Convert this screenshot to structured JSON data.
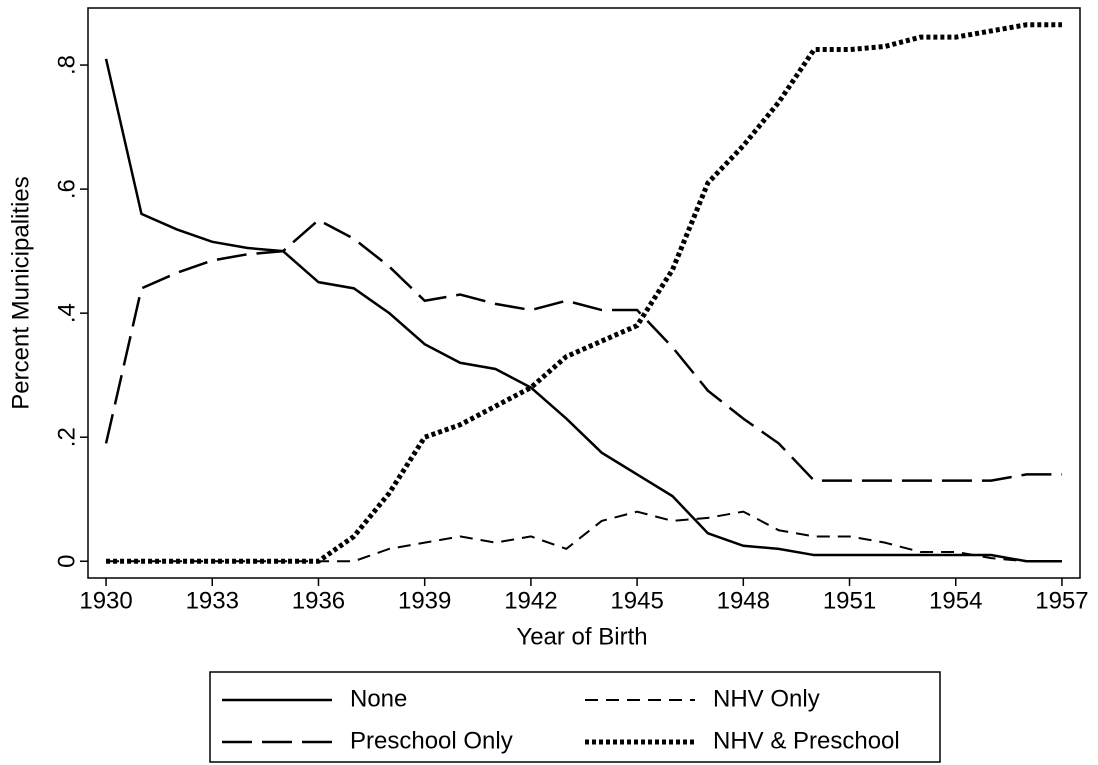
{
  "chart_data": {
    "type": "line",
    "x": [
      1930,
      1931,
      1932,
      1933,
      1934,
      1935,
      1936,
      1937,
      1938,
      1939,
      1940,
      1941,
      1942,
      1943,
      1944,
      1945,
      1946,
      1947,
      1948,
      1949,
      1950,
      1951,
      1952,
      1953,
      1954,
      1955,
      1956,
      1957
    ],
    "xlabel": "Year of Birth",
    "ylabel": "Percent Municipalities",
    "xlim": [
      1929.49,
      1957.51
    ],
    "ylim": [
      -0.027,
      0.892
    ],
    "xticks": [
      1930,
      1933,
      1936,
      1939,
      1942,
      1945,
      1948,
      1951,
      1954,
      1957
    ],
    "yticks": [
      0,
      {
        "value": 0.2,
        "label": ".2"
      },
      {
        "value": 0.4,
        "label": ".4"
      },
      {
        "value": 0.6,
        "label": ".6"
      },
      {
        "value": 0.8,
        "label": ".8"
      }
    ],
    "grid": false,
    "legend": "bottom",
    "series": [
      {
        "name": "None",
        "color": "#000000",
        "dash": "solid",
        "values": [
          0.81,
          0.56,
          0.535,
          0.515,
          0.505,
          0.5,
          0.45,
          0.44,
          0.4,
          0.35,
          0.32,
          0.31,
          0.28,
          0.23,
          0.175,
          0.14,
          0.105,
          0.045,
          0.025,
          0.02,
          0.01,
          0.01,
          0.01,
          0.01,
          0.01,
          0.01,
          0,
          0
        ]
      },
      {
        "name": "NHV Only",
        "color": "#000000",
        "dash": "short",
        "values": [
          0,
          0,
          0,
          0,
          0,
          0,
          0,
          0,
          0.02,
          0.03,
          0.04,
          0.03,
          0.04,
          0.02,
          0.065,
          0.08,
          0.065,
          0.07,
          0.08,
          0.05,
          0.04,
          0.04,
          0.03,
          0.015,
          0.015,
          0.005,
          0,
          0
        ]
      },
      {
        "name": "Preschool Only",
        "color": "#000000",
        "dash": "long",
        "values": [
          0.19,
          0.44,
          0.465,
          0.485,
          0.495,
          0.5,
          0.55,
          0.52,
          0.475,
          0.42,
          0.43,
          0.415,
          0.405,
          0.42,
          0.405,
          0.405,
          0.345,
          0.275,
          0.23,
          0.19,
          0.13,
          0.13,
          0.13,
          0.13,
          0.13,
          0.13,
          0.14,
          0.14
        ]
      },
      {
        "name": "NHV & Preschool",
        "color": "#000000",
        "dash": "dot",
        "values": [
          0,
          0,
          0,
          0,
          0,
          0,
          0,
          0.04,
          0.11,
          0.2,
          0.22,
          0.25,
          0.28,
          0.33,
          0.355,
          0.38,
          0.47,
          0.61,
          0.67,
          0.74,
          0.825,
          0.825,
          0.83,
          0.845,
          0.845,
          0.855,
          0.865,
          0.865
        ]
      }
    ]
  }
}
